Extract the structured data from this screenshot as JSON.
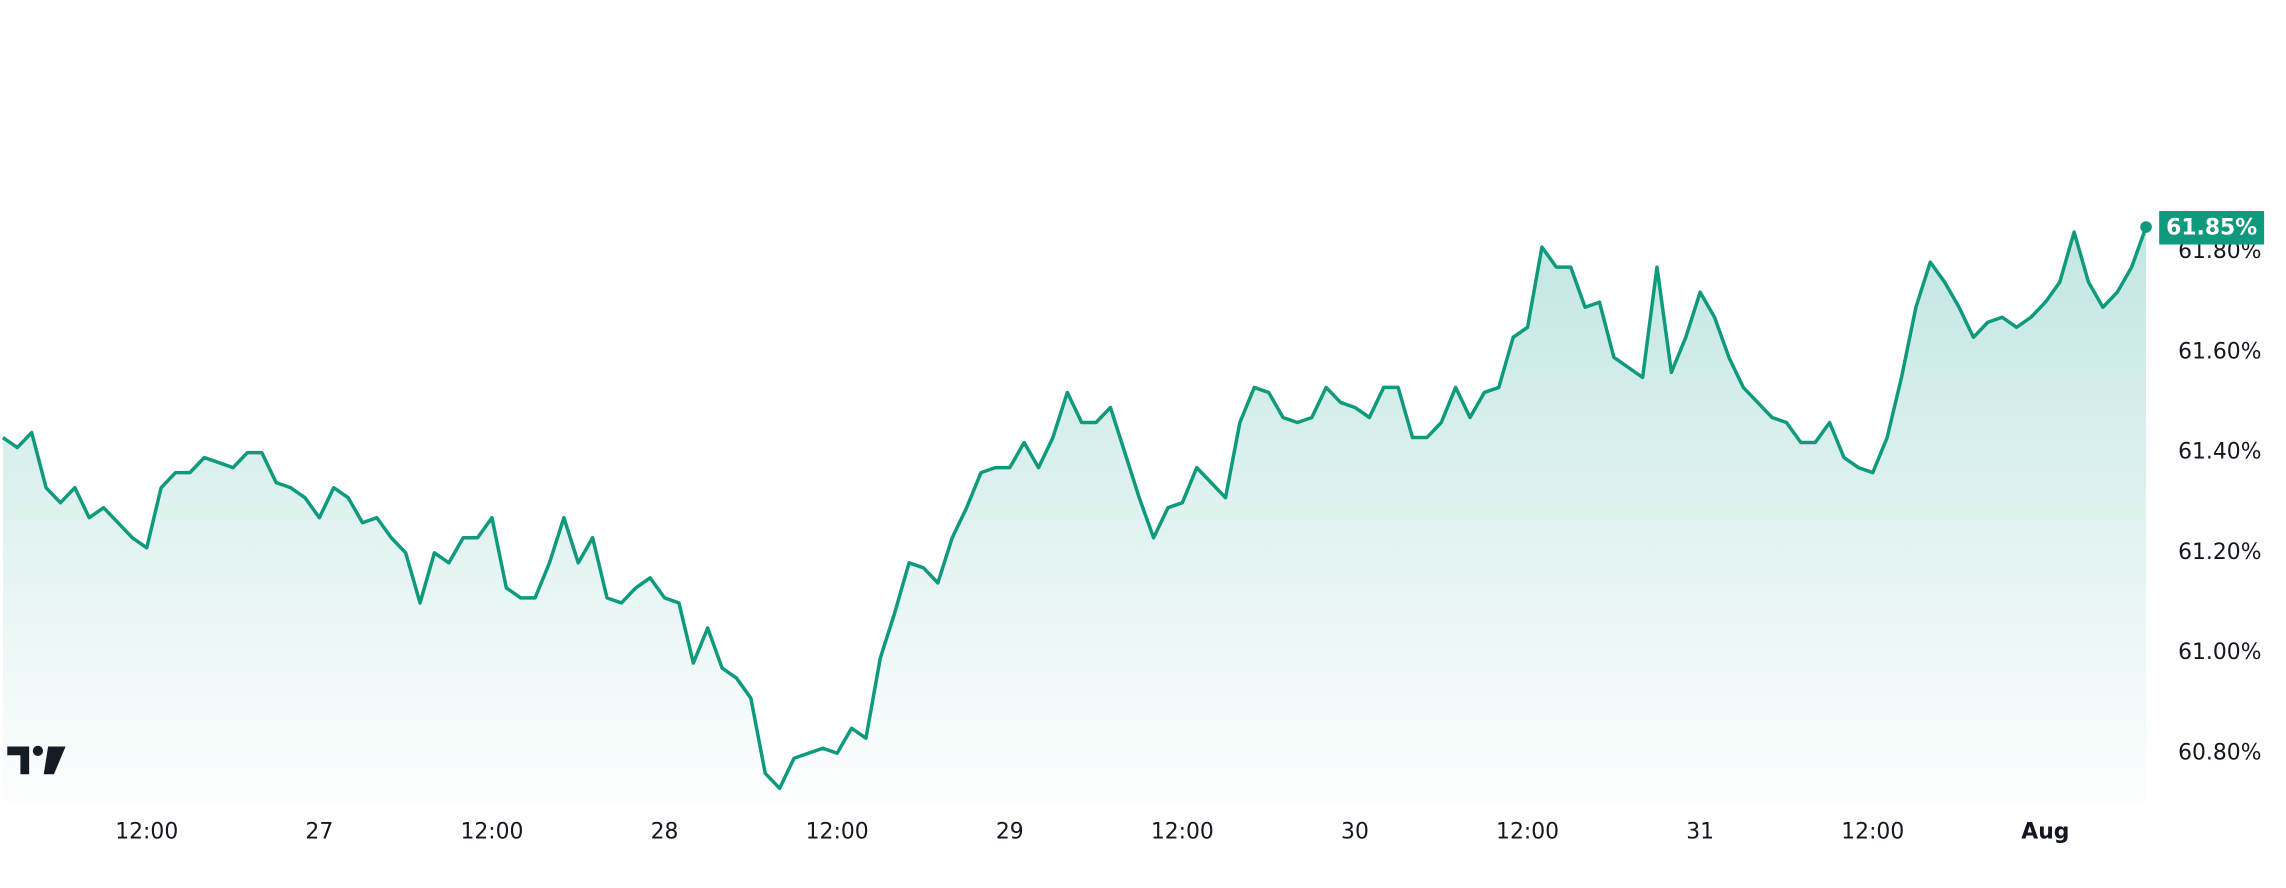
{
  "chart_data": {
    "type": "line",
    "color": "#0f9a7e",
    "x": [
      2,
      3,
      4,
      5,
      6,
      7,
      8,
      9,
      10,
      11,
      12,
      13,
      14,
      15,
      16,
      17,
      18,
      19,
      20,
      21,
      22,
      23,
      24,
      25,
      26,
      27,
      28,
      29,
      30,
      31,
      32,
      33,
      34,
      35,
      36,
      37,
      38,
      39,
      40,
      41,
      42,
      43,
      44,
      45,
      46,
      47,
      48,
      49,
      50,
      51,
      52,
      53,
      54,
      55,
      56,
      57,
      58,
      59,
      60,
      61,
      62,
      63,
      64,
      65,
      66,
      67,
      68,
      69,
      70,
      71,
      72,
      73,
      74,
      75,
      76,
      77,
      78,
      79,
      80,
      81,
      82,
      83,
      84,
      85,
      86,
      87,
      88,
      89,
      90,
      91,
      92,
      93,
      94,
      95,
      96,
      97,
      98,
      99,
      100,
      101,
      102,
      103,
      104,
      105,
      106,
      107,
      108,
      109,
      110,
      111,
      112,
      113,
      114,
      115,
      116,
      117,
      118,
      119,
      120,
      121,
      122,
      123,
      124,
      125,
      126,
      127,
      128,
      129,
      130,
      131,
      132,
      133,
      134,
      135,
      136,
      137,
      138,
      139,
      140,
      141,
      142,
      143,
      144,
      145,
      146,
      147,
      148,
      149,
      150,
      151
    ],
    "values": [
      61.43,
      61.41,
      61.44,
      61.33,
      61.3,
      61.33,
      61.27,
      61.29,
      61.26,
      61.23,
      61.21,
      61.33,
      61.36,
      61.36,
      61.39,
      61.38,
      61.37,
      61.4,
      61.4,
      61.34,
      61.33,
      61.31,
      61.27,
      61.33,
      61.31,
      61.26,
      61.27,
      61.23,
      61.2,
      61.1,
      61.2,
      61.18,
      61.23,
      61.23,
      61.27,
      61.13,
      61.11,
      61.11,
      61.18,
      61.27,
      61.18,
      61.23,
      61.11,
      61.1,
      61.13,
      61.15,
      61.11,
      61.1,
      60.98,
      61.05,
      60.97,
      60.95,
      60.91,
      60.76,
      60.73,
      60.79,
      60.8,
      60.81,
      60.8,
      60.85,
      60.83,
      60.99,
      61.08,
      61.18,
      61.17,
      61.14,
      61.23,
      61.29,
      61.36,
      61.37,
      61.37,
      61.42,
      61.37,
      61.43,
      61.52,
      61.46,
      61.46,
      61.49,
      61.4,
      61.31,
      61.23,
      61.29,
      61.3,
      61.37,
      61.34,
      61.31,
      61.46,
      61.53,
      61.52,
      61.47,
      61.46,
      61.47,
      61.53,
      61.5,
      61.49,
      61.47,
      61.53,
      61.53,
      61.43,
      61.43,
      61.46,
      61.53,
      61.47,
      61.52,
      61.53,
      61.63,
      61.65,
      61.81,
      61.77,
      61.77,
      61.69,
      61.7,
      61.59,
      61.57,
      61.55,
      61.77,
      61.56,
      61.63,
      61.72,
      61.67,
      61.59,
      61.53,
      61.5,
      61.47,
      61.46,
      61.42,
      61.42,
      61.46,
      61.39,
      61.37,
      61.36,
      61.43,
      61.55,
      61.69,
      61.78,
      61.74,
      61.69,
      61.63,
      61.66,
      61.67,
      61.65,
      61.67,
      61.7,
      61.74,
      61.84,
      61.74,
      61.69,
      61.72,
      61.77,
      61.85
    ],
    "last_value_label": "61.85%",
    "xlim": [
      2,
      151
    ],
    "ylim": [
      60.7,
      62.3
    ],
    "xticks": [
      {
        "value": 12,
        "label": "12:00"
      },
      {
        "value": 24,
        "label": "27"
      },
      {
        "value": 36,
        "label": "12:00"
      },
      {
        "value": 48,
        "label": "28"
      },
      {
        "value": 60,
        "label": "12:00"
      },
      {
        "value": 72,
        "label": "29"
      },
      {
        "value": 84,
        "label": "12:00"
      },
      {
        "value": 96,
        "label": "30"
      },
      {
        "value": 108,
        "label": "12:00"
      },
      {
        "value": 120,
        "label": "31"
      },
      {
        "value": 132,
        "label": "12:00"
      },
      {
        "value": 144,
        "label": "Aug"
      }
    ],
    "yticks": [
      {
        "value": 60.8,
        "label": "60.80%"
      },
      {
        "value": 61.0,
        "label": "61.00%"
      },
      {
        "value": 61.2,
        "label": "61.20%"
      },
      {
        "value": 61.4,
        "label": "61.40%"
      },
      {
        "value": 61.6,
        "label": "61.60%"
      },
      {
        "value": 61.8,
        "label": "61.80%"
      }
    ],
    "grid": false
  }
}
